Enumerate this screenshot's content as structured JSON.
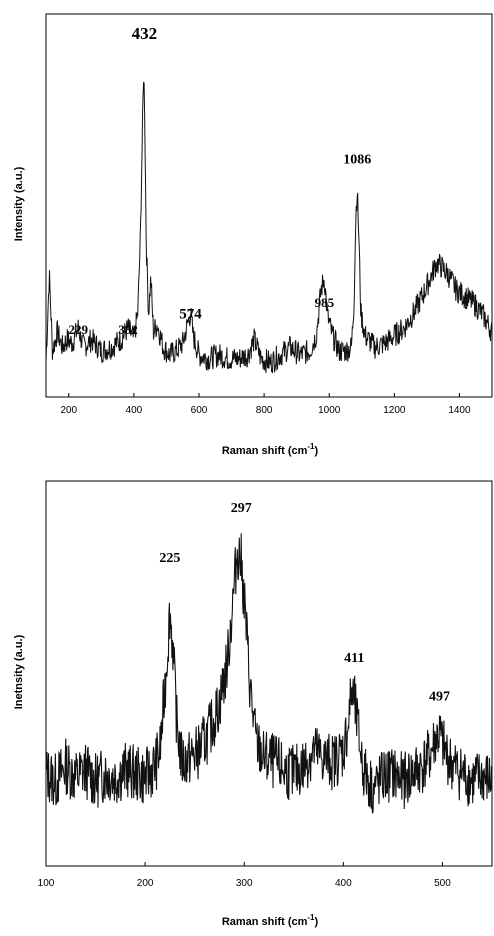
{
  "chart_data": [
    {
      "type": "line",
      "xlabel": "Raman shift (cm",
      "xlabel_sup": "-1",
      "xlabel_end": ")",
      "ylabel": "Intensity (a.u.)",
      "xlim": [
        130,
        1500
      ],
      "ylim": [
        0,
        100
      ],
      "y_ticks_shown": false,
      "x_ticks": [
        200,
        400,
        600,
        800,
        1000,
        1200,
        1400
      ],
      "annotations": [
        {
          "text": "229",
          "x": 229,
          "y": 16.5
        },
        {
          "text": "382",
          "x": 382,
          "y": 16.5
        },
        {
          "text": "432",
          "x": 432,
          "y": 93.5
        },
        {
          "text": "574",
          "x": 574,
          "y": 20.5
        },
        {
          "text": "985",
          "x": 985,
          "y": 23.5
        },
        {
          "text": "1086",
          "x": 1086,
          "y": 61
        }
      ],
      "series": [
        {
          "points": [
            [
              130,
              9
            ],
            [
              140,
              32
            ],
            [
              150,
              12
            ],
            [
              165,
              17
            ],
            [
              180,
              13
            ],
            [
              195,
              15
            ],
            [
              210,
              14
            ],
            [
              229,
              18
            ],
            [
              245,
              13
            ],
            [
              270,
              15
            ],
            [
              300,
              12
            ],
            [
              330,
              13
            ],
            [
              360,
              15
            ],
            [
              382,
              18
            ],
            [
              400,
              15
            ],
            [
              412,
              22
            ],
            [
              420,
              42
            ],
            [
              427,
              72
            ],
            [
              430,
              85
            ],
            [
              433,
              76
            ],
            [
              438,
              40
            ],
            [
              445,
              22
            ],
            [
              452,
              31
            ],
            [
              460,
              17
            ],
            [
              472,
              19
            ],
            [
              490,
              13
            ],
            [
              510,
              11
            ],
            [
              530,
              12
            ],
            [
              550,
              14
            ],
            [
              565,
              19
            ],
            [
              574,
              22
            ],
            [
              582,
              16
            ],
            [
              600,
              11
            ],
            [
              630,
              10
            ],
            [
              660,
              11
            ],
            [
              690,
              10
            ],
            [
              720,
              10
            ],
            [
              750,
              11
            ],
            [
              770,
              15
            ],
            [
              790,
              10
            ],
            [
              820,
              9
            ],
            [
              850,
              11
            ],
            [
              880,
              13
            ],
            [
              910,
              11
            ],
            [
              940,
              12
            ],
            [
              960,
              16
            ],
            [
              975,
              28
            ],
            [
              985,
              31
            ],
            [
              995,
              21
            ],
            [
              1010,
              16
            ],
            [
              1030,
              12
            ],
            [
              1050,
              12
            ],
            [
              1068,
              13
            ],
            [
              1076,
              24
            ],
            [
              1082,
              48
            ],
            [
              1086,
              54
            ],
            [
              1091,
              42
            ],
            [
              1097,
              22
            ],
            [
              1110,
              16
            ],
            [
              1140,
              13
            ],
            [
              1170,
              14
            ],
            [
              1200,
              16
            ],
            [
              1230,
              18
            ],
            [
              1260,
              22
            ],
            [
              1290,
              27
            ],
            [
              1315,
              32
            ],
            [
              1330,
              35
            ],
            [
              1345,
              34
            ],
            [
              1365,
              32
            ],
            [
              1390,
              28
            ],
            [
              1420,
              26
            ],
            [
              1450,
              24
            ],
            [
              1475,
              21
            ],
            [
              1500,
              17
            ]
          ]
        }
      ]
    },
    {
      "type": "line",
      "xlabel": "Raman shift (cm",
      "xlabel_sup": "-1",
      "xlabel_end": ")",
      "ylabel": "Inetnsity (a.u.)",
      "xlim": [
        100,
        550
      ],
      "ylim": [
        0,
        100
      ],
      "y_ticks_shown": false,
      "x_ticks": [
        100,
        200,
        300,
        400,
        500
      ],
      "annotations": [
        {
          "text": "225",
          "x": 225,
          "y": 79
        },
        {
          "text": "297",
          "x": 297,
          "y": 92
        },
        {
          "text": "411",
          "x": 411,
          "y": 53
        },
        {
          "text": "497",
          "x": 497,
          "y": 43
        }
      ],
      "series": [
        {
          "points": [
            [
              100,
              24
            ],
            [
              110,
              22
            ],
            [
              120,
              26
            ],
            [
              130,
              23
            ],
            [
              140,
              25
            ],
            [
              150,
              22
            ],
            [
              160,
              24
            ],
            [
              170,
              23
            ],
            [
              180,
              25
            ],
            [
              190,
              24
            ],
            [
              200,
              23
            ],
            [
              210,
              26
            ],
            [
              215,
              30
            ],
            [
              220,
              46
            ],
            [
              225,
              66
            ],
            [
              228,
              57
            ],
            [
              232,
              37
            ],
            [
              237,
              27
            ],
            [
              245,
              28
            ],
            [
              255,
              30
            ],
            [
              265,
              35
            ],
            [
              275,
              42
            ],
            [
              283,
              53
            ],
            [
              289,
              70
            ],
            [
              293,
              82
            ],
            [
              297,
              79
            ],
            [
              301,
              66
            ],
            [
              306,
              46
            ],
            [
              312,
              32
            ],
            [
              320,
              28
            ],
            [
              330,
              27
            ],
            [
              340,
              25
            ],
            [
              350,
              24
            ],
            [
              360,
              26
            ],
            [
              370,
              30
            ],
            [
              380,
              28
            ],
            [
              390,
              27
            ],
            [
              400,
              30
            ],
            [
              405,
              37
            ],
            [
              408,
              45
            ],
            [
              411,
              43
            ],
            [
              415,
              35
            ],
            [
              420,
              25
            ],
            [
              430,
              20
            ],
            [
              440,
              23
            ],
            [
              450,
              24
            ],
            [
              460,
              22
            ],
            [
              470,
              24
            ],
            [
              480,
              26
            ],
            [
              488,
              29
            ],
            [
              493,
              33
            ],
            [
              497,
              34
            ],
            [
              502,
              30
            ],
            [
              510,
              26
            ],
            [
              520,
              24
            ],
            [
              530,
              22
            ],
            [
              540,
              23
            ],
            [
              550,
              22
            ]
          ]
        }
      ]
    }
  ]
}
